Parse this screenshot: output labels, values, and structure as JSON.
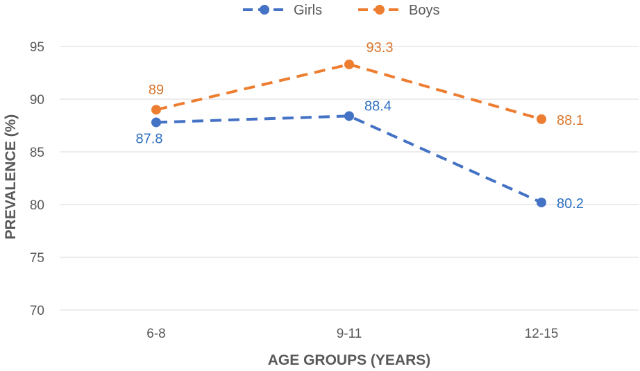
{
  "chart_data": {
    "type": "line",
    "categories": [
      "6-8",
      "9-11",
      "12-15"
    ],
    "series": [
      {
        "name": "Girls",
        "values": [
          87.8,
          88.4,
          80.2
        ],
        "color": "#4472C4",
        "label_color": "#2E6FC0"
      },
      {
        "name": "Boys",
        "values": [
          89,
          93.3,
          88.1
        ],
        "color": "#ED7D31",
        "label_color": "#D9772F"
      }
    ],
    "data_labels": {
      "girls": [
        "87.8",
        "88.4",
        "80.2"
      ],
      "boys": [
        "89",
        "93.3",
        "88.1"
      ]
    },
    "xlabel": "AGE GROUPS (YEARS)",
    "ylabel": "PREVALENCE (%)",
    "ylim": [
      70,
      95
    ],
    "yticks": [
      "70",
      "75",
      "80",
      "85",
      "90",
      "95"
    ],
    "grid": true,
    "line_style": "dashed",
    "legend_position": "top-center"
  }
}
